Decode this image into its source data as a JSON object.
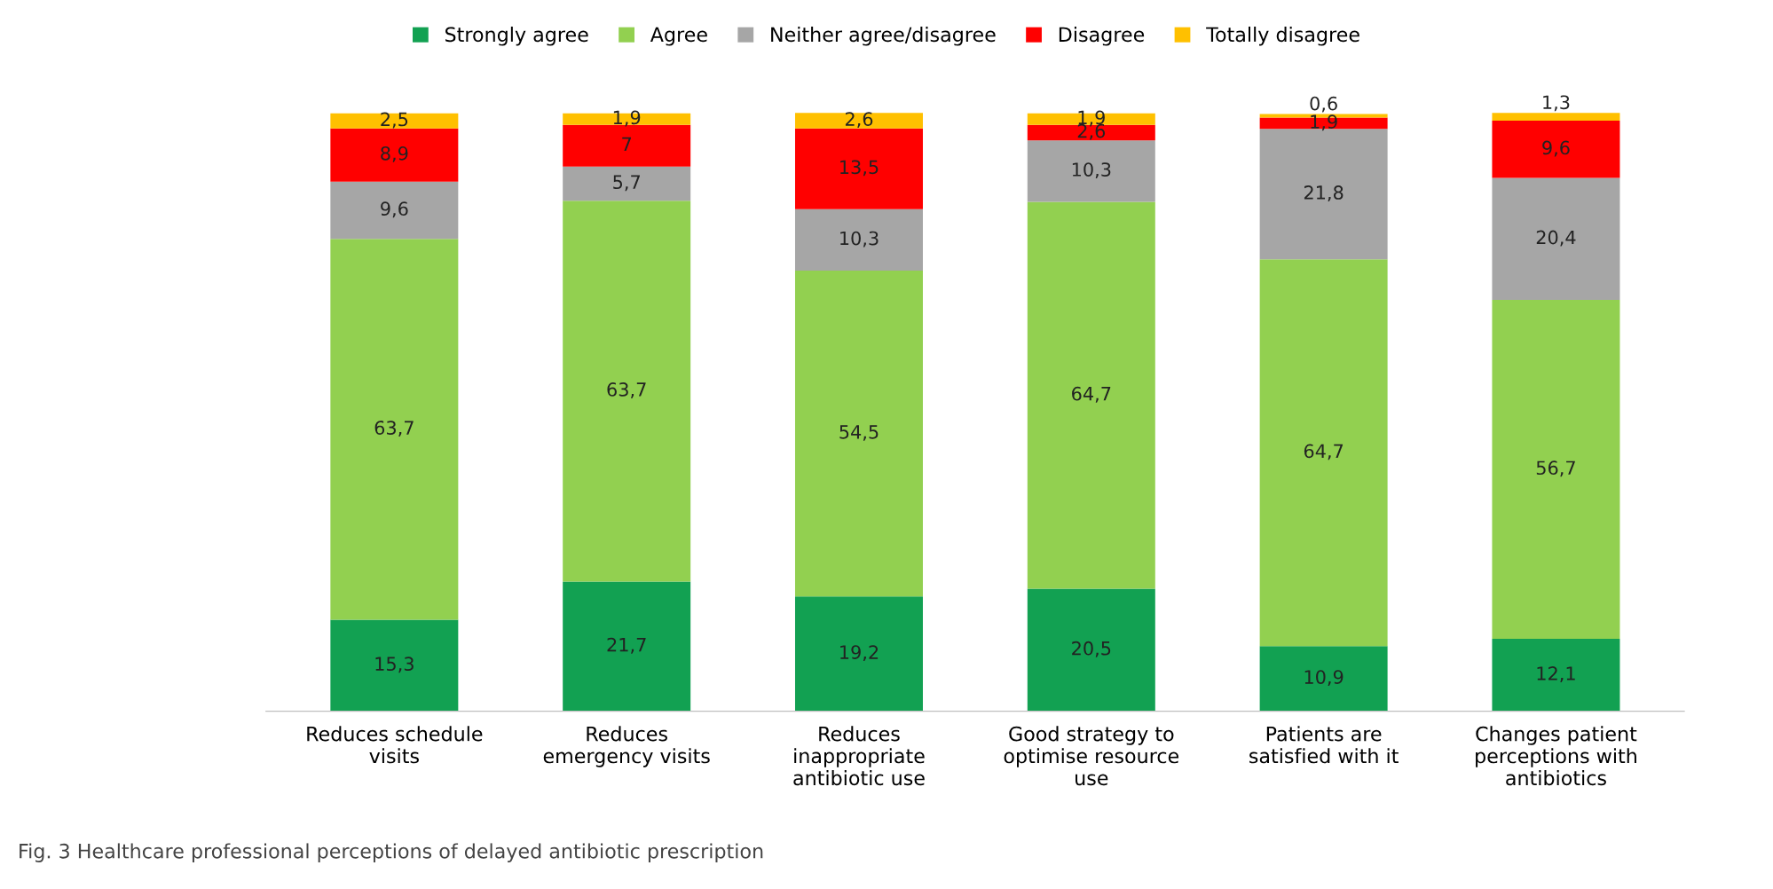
{
  "chart_data": {
    "type": "bar",
    "stacked": true,
    "legend": "top",
    "grid": false,
    "categories": [
      "Reduces schedule\nvisits",
      "Reduces\nemergency visits",
      "Reduces\ninappropriate\nantibiotic use",
      "Good strategy to\noptimise resource\nuse",
      "Patients are\nsatisfied with it",
      "Changes patient\nperceptions with\nantibiotics"
    ],
    "series": [
      {
        "name": "Strongly agree",
        "color": "#12a152",
        "values": [
          15.3,
          21.7,
          19.2,
          20.5,
          10.9,
          12.1
        ],
        "value_labels": [
          "15,3",
          "21,7",
          "19,2",
          "20,5",
          "10,9",
          "12,1"
        ]
      },
      {
        "name": "Agree",
        "color": "#92d050",
        "values": [
          63.7,
          63.7,
          54.5,
          64.7,
          64.7,
          56.7
        ],
        "value_labels": [
          "63,7",
          "63,7",
          "54,5",
          "64,7",
          "64,7",
          "56,7"
        ]
      },
      {
        "name": "Neither agree/disagree",
        "color": "#a6a6a6",
        "values": [
          9.6,
          5.7,
          10.3,
          10.3,
          21.8,
          20.4
        ],
        "value_labels": [
          "9,6",
          "5,7",
          "10,3",
          "10,3",
          "21,8",
          "20,4"
        ]
      },
      {
        "name": "Disagree",
        "color": "#ff0000",
        "values": [
          8.9,
          7,
          13.5,
          2.6,
          1.9,
          9.6
        ],
        "value_labels": [
          "8,9",
          "7",
          "13,5",
          "2,6",
          "1,9",
          "9,6"
        ]
      },
      {
        "name": "Totally disagree",
        "color": "#ffc000",
        "values": [
          2.5,
          1.9,
          2.6,
          1.9,
          0.6,
          1.3
        ],
        "value_labels": [
          "2,5",
          "1,9",
          "2,6",
          "1,9",
          "0,6",
          "1,3"
        ]
      }
    ],
    "annotations": [
      "Fig. 3 Healthcare professional perceptions of delayed antibiotic prescription"
    ]
  }
}
